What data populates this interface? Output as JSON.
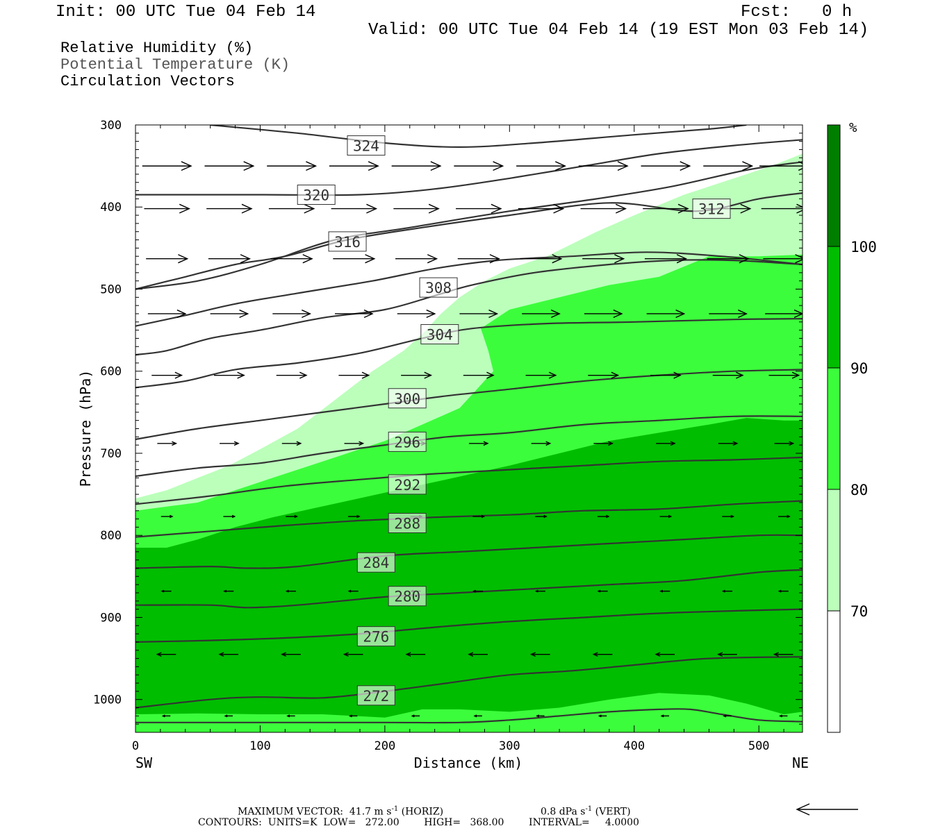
{
  "header": {
    "init": "Init: 00 UTC Tue 04 Feb 14",
    "fcst_label": "Fcst:",
    "fcst_value": "0 h",
    "valid": "Valid: 00 UTC Tue 04 Feb 14 (19 EST Mon 03 Feb 14)"
  },
  "fields": {
    "rh": "Relative Humidity (%)",
    "theta": "Potential Temperature (K)",
    "vectors": "Circulation Vectors"
  },
  "footer": {
    "max_vector_label": "MAXIMUM VECTOR:",
    "max_vector_horiz": "41.7 m s",
    "horiz_tag": "(HORIZ)",
    "max_vector_vert": "0.8 dPa s",
    "vert_tag": "(VERT)",
    "exp": "-1",
    "contours": "CONTOURS:  UNITS=K  LOW=   272.00        HIGH=   368.00        INTERVAL=     4.0000"
  },
  "colors": {
    "rh_70_80": "#bbffbb",
    "rh_80_90": "#3cfd3c",
    "rh_90_100": "#00bd00",
    "rh_100": "#007e00",
    "contour": "#333333",
    "vector": "#000000"
  },
  "chart_data": {
    "type": "cross-section",
    "xlabel": "Distance (km)",
    "ylabel": "Pressure (hPa)",
    "xlim": [
      0,
      535
    ],
    "ylim": [
      1040,
      300
    ],
    "x_ticks": [
      0,
      100,
      200,
      300,
      400,
      500
    ],
    "y_ticks": [
      300,
      400,
      500,
      600,
      700,
      800,
      900,
      1000
    ],
    "x_end_labels": {
      "left": "SW",
      "right": "NE"
    },
    "colorbar": {
      "unit": "%",
      "levels": [
        70,
        80,
        90,
        100
      ],
      "colors": [
        "#ffffff",
        "#bbffbb",
        "#3cfd3c",
        "#00bd00",
        "#007e00"
      ]
    },
    "rh_regions": [
      {
        "range": "70-80",
        "color": "#bbffbb",
        "boundary": [
          [
            0,
            755
          ],
          [
            25,
            745
          ],
          [
            50,
            730
          ],
          [
            75,
            715
          ],
          [
            100,
            695
          ],
          [
            130,
            670
          ],
          [
            160,
            635
          ],
          [
            190,
            600
          ],
          [
            215,
            575
          ],
          [
            230,
            555
          ],
          [
            245,
            530
          ],
          [
            260,
            510
          ],
          [
            280,
            490
          ],
          [
            300,
            475
          ],
          [
            330,
            460
          ],
          [
            370,
            430
          ],
          [
            400,
            410
          ],
          [
            440,
            385
          ],
          [
            480,
            365
          ],
          [
            510,
            350
          ],
          [
            535,
            335
          ],
          [
            535,
            1040
          ],
          [
            0,
            1040
          ]
        ]
      },
      {
        "range": "80-90",
        "color": "#3cfd3c",
        "boundary": [
          [
            0,
            770
          ],
          [
            25,
            765
          ],
          [
            50,
            760
          ],
          [
            80,
            745
          ],
          [
            110,
            730
          ],
          [
            140,
            715
          ],
          [
            170,
            700
          ],
          [
            200,
            685
          ],
          [
            230,
            665
          ],
          [
            260,
            645
          ],
          [
            275,
            620
          ],
          [
            287,
            600
          ],
          [
            283,
            575
          ],
          [
            277,
            548
          ],
          [
            300,
            525
          ],
          [
            340,
            510
          ],
          [
            380,
            495
          ],
          [
            420,
            485
          ],
          [
            460,
            460
          ],
          [
            500,
            460
          ],
          [
            535,
            458
          ],
          [
            535,
            1040
          ],
          [
            0,
            1040
          ]
        ]
      },
      {
        "range": "90-100",
        "color": "#00bd00",
        "boundary": [
          [
            0,
            815
          ],
          [
            25,
            815
          ],
          [
            50,
            805
          ],
          [
            80,
            790
          ],
          [
            110,
            778
          ],
          [
            140,
            768
          ],
          [
            170,
            758
          ],
          [
            200,
            748
          ],
          [
            240,
            735
          ],
          [
            270,
            725
          ],
          [
            300,
            715
          ],
          [
            340,
            700
          ],
          [
            380,
            685
          ],
          [
            420,
            675
          ],
          [
            460,
            665
          ],
          [
            490,
            657
          ],
          [
            520,
            660
          ],
          [
            535,
            660
          ],
          [
            535,
            1015
          ],
          [
            520,
            1018
          ],
          [
            490,
            1005
          ],
          [
            460,
            995
          ],
          [
            420,
            992
          ],
          [
            380,
            1000
          ],
          [
            340,
            1010
          ],
          [
            300,
            1015
          ],
          [
            260,
            1012
          ],
          [
            230,
            1012
          ],
          [
            200,
            1022
          ],
          [
            150,
            1018
          ],
          [
            100,
            1018
          ],
          [
            50,
            1017
          ],
          [
            0,
            1018
          ]
        ]
      }
    ],
    "theta_contours": [
      {
        "label": "324",
        "label_at": [
          185,
          325
        ],
        "points": [
          [
            60,
            300
          ],
          [
            130,
            310
          ],
          [
            200,
            322
          ],
          [
            260,
            327
          ],
          [
            320,
            322
          ],
          [
            400,
            312
          ],
          [
            460,
            305
          ],
          [
            490,
            300
          ]
        ]
      },
      {
        "label": "320",
        "label_at": [
          145,
          385
        ],
        "points": [
          [
            0,
            385
          ],
          [
            100,
            385
          ],
          [
            180,
            385
          ],
          [
            240,
            378
          ],
          [
            300,
            365
          ],
          [
            360,
            350
          ],
          [
            420,
            335
          ],
          [
            480,
            325
          ],
          [
            535,
            318
          ]
        ]
      },
      {
        "label": "312",
        "label_at": [
          462,
          402
        ],
        "points": [
          [
            0,
            500
          ],
          [
            40,
            485
          ],
          [
            80,
            470
          ],
          [
            120,
            460
          ],
          [
            170,
            440
          ],
          [
            230,
            425
          ],
          [
            300,
            410
          ],
          [
            380,
            395
          ],
          [
            450,
            405
          ],
          [
            500,
            390
          ],
          [
            535,
            383
          ]
        ]
      },
      {
        "label": "316",
        "label_at": [
          170,
          442
        ],
        "points": [
          [
            0,
            500
          ],
          [
            50,
            490
          ],
          [
            100,
            470
          ],
          [
            160,
            440
          ],
          [
            220,
            425
          ],
          [
            300,
            405
          ],
          [
            370,
            390
          ],
          [
            430,
            375
          ],
          [
            490,
            355
          ],
          [
            535,
            345
          ]
        ]
      },
      {
        "label": "308",
        "label_at": [
          243,
          498
        ],
        "points": [
          [
            0,
            545
          ],
          [
            40,
            532
          ],
          [
            80,
            518
          ],
          [
            130,
            505
          ],
          [
            190,
            490
          ],
          [
            240,
            475
          ],
          [
            290,
            465
          ],
          [
            350,
            460
          ],
          [
            410,
            455
          ],
          [
            470,
            460
          ],
          [
            535,
            470
          ]
        ]
      },
      {
        "label": "304",
        "label_at": [
          244,
          555
        ],
        "points": [
          [
            0,
            580
          ],
          [
            25,
            575
          ],
          [
            60,
            560
          ],
          [
            100,
            550
          ],
          [
            150,
            535
          ],
          [
            200,
            525
          ],
          [
            240,
            508
          ],
          [
            270,
            495
          ],
          [
            320,
            480
          ],
          [
            380,
            470
          ],
          [
            430,
            465
          ],
          [
            480,
            465
          ],
          [
            535,
            470
          ]
        ]
      },
      {
        "label": "300",
        "label_at": [
          218,
          633
        ],
        "points": [
          [
            0,
            620
          ],
          [
            40,
            612
          ],
          [
            80,
            598
          ],
          [
            130,
            590
          ],
          [
            180,
            578
          ],
          [
            230,
            560
          ],
          [
            270,
            548
          ],
          [
            330,
            542
          ],
          [
            400,
            540
          ],
          [
            480,
            537
          ],
          [
            535,
            536
          ]
        ]
      },
      {
        "label": "296",
        "label_at": [
          218,
          686
        ],
        "points": [
          [
            0,
            683
          ],
          [
            50,
            670
          ],
          [
            100,
            660
          ],
          [
            150,
            650
          ],
          [
            200,
            640
          ],
          [
            250,
            630
          ],
          [
            300,
            622
          ],
          [
            360,
            612
          ],
          [
            420,
            605
          ],
          [
            480,
            600
          ],
          [
            535,
            598
          ]
        ]
      },
      {
        "label": "292",
        "label_at": [
          218,
          738
        ],
        "points": [
          [
            0,
            728
          ],
          [
            50,
            718
          ],
          [
            100,
            712
          ],
          [
            150,
            700
          ],
          [
            200,
            690
          ],
          [
            250,
            680
          ],
          [
            300,
            675
          ],
          [
            360,
            665
          ],
          [
            420,
            660
          ],
          [
            480,
            655
          ],
          [
            535,
            655
          ]
        ]
      },
      {
        "label": "288",
        "label_at": [
          218,
          785
        ],
        "points": [
          [
            0,
            762
          ],
          [
            60,
            752
          ],
          [
            120,
            740
          ],
          [
            180,
            732
          ],
          [
            240,
            725
          ],
          [
            300,
            720
          ],
          [
            360,
            715
          ],
          [
            420,
            710
          ],
          [
            480,
            708
          ],
          [
            535,
            705
          ]
        ]
      },
      {
        "label": "284",
        "label_at": [
          193,
          833
        ],
        "points": [
          [
            0,
            802
          ],
          [
            60,
            795
          ],
          [
            120,
            788
          ],
          [
            180,
            782
          ],
          [
            240,
            778
          ],
          [
            300,
            775
          ],
          [
            360,
            770
          ],
          [
            420,
            768
          ],
          [
            480,
            762
          ],
          [
            535,
            758
          ]
        ]
      },
      {
        "label": "280",
        "label_at": [
          218,
          874
        ],
        "points": [
          [
            0,
            840
          ],
          [
            60,
            838
          ],
          [
            90,
            840
          ],
          [
            130,
            838
          ],
          [
            200,
            825
          ],
          [
            260,
            820
          ],
          [
            320,
            815
          ],
          [
            380,
            810
          ],
          [
            440,
            805
          ],
          [
            500,
            800
          ],
          [
            535,
            800
          ]
        ]
      },
      {
        "label": "276",
        "label_at": [
          193,
          923
        ],
        "points": [
          [
            0,
            885
          ],
          [
            60,
            885
          ],
          [
            90,
            888
          ],
          [
            130,
            885
          ],
          [
            200,
            875
          ],
          [
            260,
            870
          ],
          [
            320,
            865
          ],
          [
            380,
            860
          ],
          [
            440,
            855
          ],
          [
            500,
            845
          ],
          [
            535,
            842
          ]
        ]
      },
      {
        "label": "272",
        "label_at": [
          193,
          995
        ],
        "points": [
          [
            0,
            930
          ],
          [
            60,
            928
          ],
          [
            120,
            925
          ],
          [
            180,
            920
          ],
          [
            240,
            912
          ],
          [
            300,
            905
          ],
          [
            360,
            900
          ],
          [
            420,
            895
          ],
          [
            480,
            892
          ],
          [
            535,
            890
          ]
        ]
      },
      {
        "label": "",
        "label_at": null,
        "points": [
          [
            0,
            1010
          ],
          [
            60,
            1000
          ],
          [
            100,
            997
          ],
          [
            150,
            998
          ],
          [
            200,
            990
          ],
          [
            250,
            980
          ],
          [
            300,
            970
          ],
          [
            350,
            965
          ],
          [
            400,
            958
          ],
          [
            460,
            950
          ],
          [
            535,
            948
          ]
        ]
      },
      {
        "label": "",
        "label_at": null,
        "points": [
          [
            0,
            1028
          ],
          [
            100,
            1028
          ],
          [
            200,
            1028
          ],
          [
            260,
            1028
          ],
          [
            300,
            1025
          ],
          [
            340,
            1020
          ],
          [
            380,
            1015
          ],
          [
            420,
            1012
          ],
          [
            445,
            1012
          ],
          [
            470,
            1018
          ],
          [
            500,
            1025
          ],
          [
            535,
            1027
          ]
        ]
      }
    ],
    "vector_rows": [
      {
        "p": 350,
        "dx": 26,
        "dy": 0
      },
      {
        "p": 402,
        "dx": 24,
        "dy": 0
      },
      {
        "p": 463,
        "dx": 22,
        "dy": 0
      },
      {
        "p": 530,
        "dx": 20,
        "dy": 0
      },
      {
        "p": 605,
        "dx": 16,
        "dy": 0
      },
      {
        "p": 688,
        "dx": 10,
        "dy": 0
      },
      {
        "p": 777,
        "dx": 6,
        "dy": 0
      },
      {
        "p": 868,
        "dx": -5,
        "dy": 0
      },
      {
        "p": 945,
        "dx": -10,
        "dy": 0
      },
      {
        "p": 1020,
        "dx": -4,
        "dy": 0
      }
    ],
    "vector_x": [
      25,
      75,
      125,
      175,
      225,
      275,
      325,
      375,
      425,
      475,
      520
    ],
    "reference_vector": "left-pointing arrow, bottom-right"
  }
}
